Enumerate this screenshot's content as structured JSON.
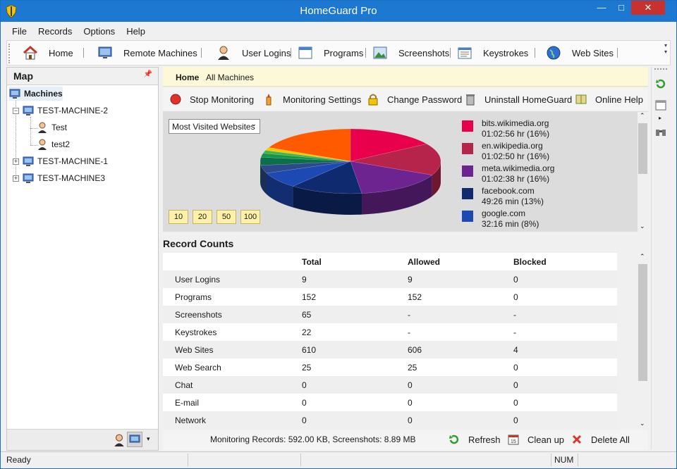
{
  "window": {
    "title": "HomeGuard Pro"
  },
  "menu": [
    "File",
    "Records",
    "Options",
    "Help"
  ],
  "toolbar": {
    "items": [
      {
        "label": "Home",
        "icon": "home-icon"
      },
      {
        "label": "Remote Machines",
        "icon": "monitor-icon"
      },
      {
        "label": "User Logins",
        "icon": "user-icon"
      },
      {
        "label": "Programs",
        "icon": "window-icon"
      },
      {
        "label": "Screenshots",
        "icon": "image-icon"
      },
      {
        "label": "Keystrokes",
        "icon": "keyboard-icon"
      },
      {
        "label": "Web Sites",
        "icon": "globe-icon"
      }
    ]
  },
  "map": {
    "title": "Map",
    "root": "Machines",
    "machines": [
      {
        "name": "TEST-MACHINE-2",
        "users": [
          "Test",
          "test2"
        ],
        "expanded": true
      },
      {
        "name": "TEST-MACHINE-1",
        "users": [],
        "expanded": false
      },
      {
        "name": "TEST-MACHINE3",
        "users": [],
        "expanded": false
      }
    ]
  },
  "breadcrumb": {
    "home": "Home",
    "current": "All Machines"
  },
  "actions": [
    {
      "label": "Stop Monitoring",
      "icon": "stop-icon"
    },
    {
      "label": "Monitoring Settings",
      "icon": "settings-icon"
    },
    {
      "label": "Change Password",
      "icon": "lock-icon"
    },
    {
      "label": "Uninstall HomeGuard",
      "icon": "trash-icon"
    },
    {
      "label": "Online Help",
      "icon": "book-icon"
    }
  ],
  "chart_selector": {
    "value": "Most Visited Websites"
  },
  "count_buttons": [
    "10",
    "20",
    "50",
    "100"
  ],
  "legend": [
    {
      "label": "bits.wikimedia.org",
      "value": "01:02:56 hr  (16%)",
      "color": "#e8004d"
    },
    {
      "label": "en.wikipedia.org",
      "value": "01:02:50 hr  (16%)",
      "color": "#b6244c"
    },
    {
      "label": "meta.wikimedia.org",
      "value": "01:02:38 hr  (16%)",
      "color": "#6d2491"
    },
    {
      "label": "facebook.com",
      "value": "49:26 min  (13%)",
      "color": "#0f2a6e"
    },
    {
      "label": "google.com",
      "value": "32:16 min  (8%)",
      "color": "#1d49b4"
    }
  ],
  "chart_data": {
    "type": "pie",
    "title": "",
    "slices": [
      {
        "label": "bits.wikimedia.org",
        "value": 16,
        "color": "#e8004d"
      },
      {
        "label": "en.wikipedia.org",
        "value": 16,
        "color": "#b6244c"
      },
      {
        "label": "meta.wikimedia.org",
        "value": 16,
        "color": "#6d2491"
      },
      {
        "label": "facebook.com",
        "value": 13,
        "color": "#0f2a6e"
      },
      {
        "label": "google.com",
        "value": 8,
        "color": "#1d49b4"
      },
      {
        "label": "",
        "value": 4,
        "color": "#2c4a8a"
      },
      {
        "label": "",
        "value": 4,
        "color": "#0d6e4a"
      },
      {
        "label": "",
        "value": 2,
        "color": "#17964a"
      },
      {
        "label": "",
        "value": 1.5,
        "color": "#3fb54a"
      },
      {
        "label": "",
        "value": 1.5,
        "color": "#f7c600"
      },
      {
        "label": "",
        "value": 18,
        "color": "#ff5a00"
      }
    ]
  },
  "record_counts": {
    "title": "Record Counts",
    "columns": [
      "",
      "Total",
      "Allowed",
      "Blocked"
    ],
    "rows": [
      [
        "User Logins",
        "9",
        "9",
        "0"
      ],
      [
        "Programs",
        "152",
        "152",
        "0"
      ],
      [
        "Screenshots",
        "65",
        "-",
        "-"
      ],
      [
        "Keystrokes",
        "22",
        "-",
        "-"
      ],
      [
        "Web Sites",
        "610",
        "606",
        "4"
      ],
      [
        "Web Search",
        "25",
        "25",
        "0"
      ],
      [
        "Chat",
        "0",
        "0",
        "0"
      ],
      [
        "E-mail",
        "0",
        "0",
        "0"
      ],
      [
        "Network",
        "0",
        "0",
        "0"
      ]
    ]
  },
  "bottom": {
    "info": "Monitoring Records: 592.00 KB, Screenshots: 8.89 MB",
    "refresh": "Refresh",
    "cleanup": "Clean up",
    "delete_all": "Delete All"
  },
  "status": {
    "ready": "Ready",
    "num": "NUM"
  }
}
